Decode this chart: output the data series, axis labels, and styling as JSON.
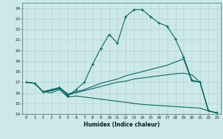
{
  "xlabel": "Humidex (Indice chaleur)",
  "bg_color": "#cce8e8",
  "grid_color": "#b0cccc",
  "line_color": "#006060",
  "xlim": [
    -0.5,
    23.5
  ],
  "ylim": [
    14,
    24.5
  ],
  "yticks": [
    14,
    15,
    16,
    17,
    18,
    19,
    20,
    21,
    22,
    23,
    24
  ],
  "xticks": [
    0,
    1,
    2,
    3,
    4,
    5,
    6,
    7,
    8,
    9,
    10,
    11,
    12,
    13,
    14,
    15,
    16,
    17,
    18,
    19,
    20,
    21,
    22,
    23
  ],
  "line1_x": [
    0,
    1,
    2,
    3,
    4,
    5,
    6,
    7,
    8,
    9,
    10,
    11,
    12,
    13,
    14,
    15,
    16,
    17,
    18,
    19,
    20,
    21,
    22,
    23
  ],
  "line1_y": [
    17.0,
    16.9,
    16.1,
    16.3,
    16.5,
    15.7,
    16.3,
    17.0,
    18.7,
    20.2,
    21.5,
    20.7,
    23.2,
    23.85,
    23.85,
    23.2,
    22.6,
    22.3,
    21.1,
    19.4,
    17.2,
    17.0,
    14.3,
    14.1
  ],
  "line2_x": [
    0,
    1,
    2,
    3,
    4,
    5,
    6,
    7,
    8,
    9,
    10,
    11,
    12,
    13,
    14,
    15,
    16,
    17,
    18,
    19,
    20,
    21,
    22,
    23
  ],
  "line2_y": [
    17.0,
    16.9,
    16.1,
    16.2,
    16.5,
    15.9,
    16.1,
    16.3,
    16.6,
    16.9,
    17.1,
    17.3,
    17.6,
    17.8,
    18.0,
    18.2,
    18.4,
    18.6,
    18.9,
    19.2,
    17.1,
    17.0,
    14.3,
    14.1
  ],
  "line3_x": [
    0,
    1,
    2,
    3,
    4,
    5,
    6,
    7,
    8,
    9,
    10,
    11,
    12,
    13,
    14,
    15,
    16,
    17,
    18,
    19,
    20,
    21,
    22,
    23
  ],
  "line3_y": [
    17.0,
    16.9,
    16.1,
    16.2,
    16.4,
    15.8,
    16.0,
    16.2,
    16.4,
    16.6,
    16.8,
    17.0,
    17.1,
    17.3,
    17.4,
    17.5,
    17.6,
    17.7,
    17.8,
    17.85,
    17.7,
    17.0,
    14.3,
    14.1
  ],
  "line4_x": [
    0,
    1,
    2,
    3,
    4,
    5,
    6,
    7,
    8,
    9,
    10,
    11,
    12,
    13,
    14,
    15,
    16,
    17,
    18,
    19,
    20,
    21,
    22,
    23
  ],
  "line4_y": [
    17.0,
    16.9,
    16.1,
    16.0,
    16.3,
    15.6,
    15.7,
    15.6,
    15.5,
    15.4,
    15.3,
    15.2,
    15.1,
    15.0,
    14.9,
    14.85,
    14.8,
    14.75,
    14.7,
    14.65,
    14.6,
    14.55,
    14.3,
    14.1
  ]
}
